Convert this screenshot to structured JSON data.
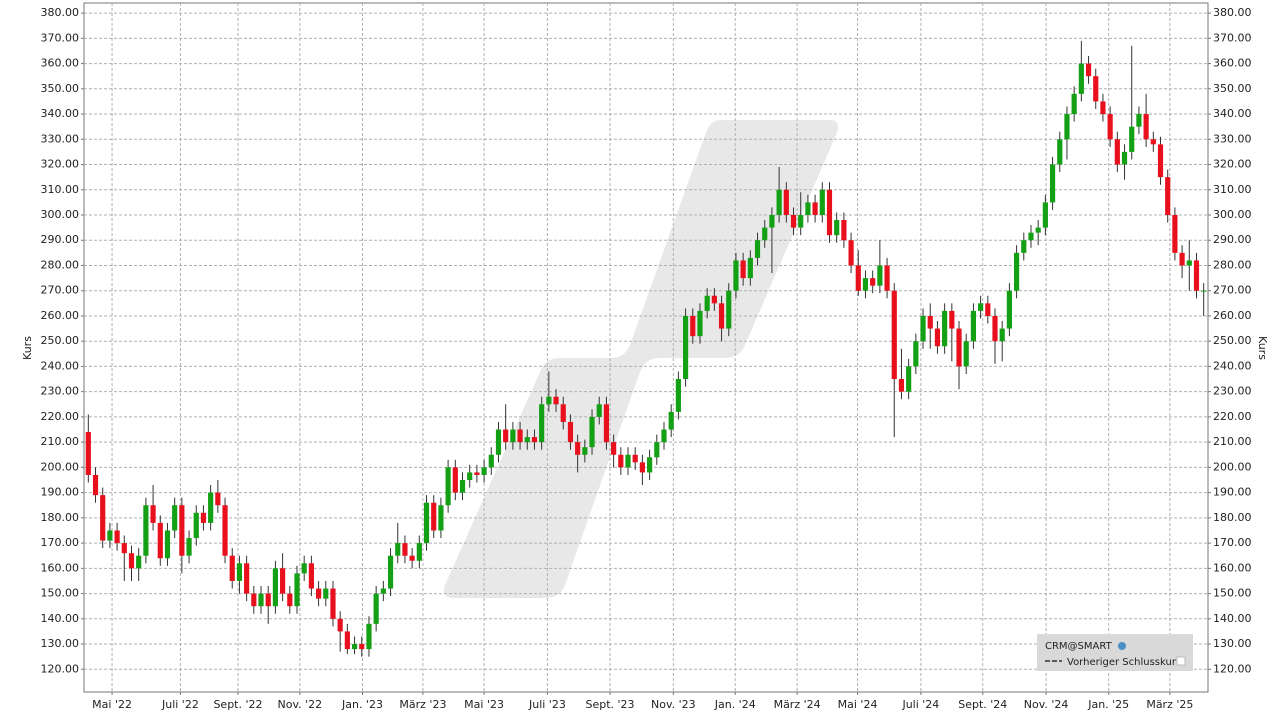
{
  "chart_data": {
    "type": "candlestick",
    "y_label": "Kurs",
    "legend": {
      "title": "CRM@SMART",
      "entry": "Vorheriger Schlusskurs"
    },
    "up_color": "#14a014",
    "down_color": "#e8101c",
    "grid": true,
    "xlim": [
      -0.6,
      155.6
    ],
    "ylim": [
      111,
      384
    ],
    "xticks": [
      {
        "value": 3.3,
        "label": "Mai '22"
      },
      {
        "value": 12.8,
        "label": "Juli '22"
      },
      {
        "value": 20.8,
        "label": "Sept. '22"
      },
      {
        "value": 29.4,
        "label": "Nov. '22"
      },
      {
        "value": 38.1,
        "label": "Jan. '23"
      },
      {
        "value": 46.5,
        "label": "März '23"
      },
      {
        "value": 55,
        "label": "Mai '23"
      },
      {
        "value": 63.8,
        "label": "Juli '23"
      },
      {
        "value": 72.5,
        "label": "Sept. '23"
      },
      {
        "value": 81.3,
        "label": "Nov. '23"
      },
      {
        "value": 89.9,
        "label": "Jan. '24"
      },
      {
        "value": 98.5,
        "label": "März '24"
      },
      {
        "value": 106.9,
        "label": "Mai '24"
      },
      {
        "value": 115.7,
        "label": "Juli '24"
      },
      {
        "value": 124.3,
        "label": "Sept. '24"
      },
      {
        "value": 133.1,
        "label": "Nov. '24"
      },
      {
        "value": 141.8,
        "label": "Jan. '25"
      },
      {
        "value": 150.3,
        "label": "März '25"
      }
    ],
    "yticks": [
      {
        "value": 120,
        "label": "120.00"
      },
      {
        "value": 130,
        "label": "130.00"
      },
      {
        "value": 140,
        "label": "140.00"
      },
      {
        "value": 150,
        "label": "150.00"
      },
      {
        "value": 160,
        "label": "160.00"
      },
      {
        "value": 170,
        "label": "170.00"
      },
      {
        "value": 180,
        "label": "180.00"
      },
      {
        "value": 190,
        "label": "190.00"
      },
      {
        "value": 200,
        "label": "200.00"
      },
      {
        "value": 210,
        "label": "210.00"
      },
      {
        "value": 220,
        "label": "220.00"
      },
      {
        "value": 230,
        "label": "230.00"
      },
      {
        "value": 240,
        "label": "240.00"
      },
      {
        "value": 250,
        "label": "250.00"
      },
      {
        "value": 260,
        "label": "260.00"
      },
      {
        "value": 270,
        "label": "270.00"
      },
      {
        "value": 280,
        "label": "280.00"
      },
      {
        "value": 290,
        "label": "290.00"
      },
      {
        "value": 300,
        "label": "300.00"
      },
      {
        "value": 310,
        "label": "310.00"
      },
      {
        "value": 320,
        "label": "320.00"
      },
      {
        "value": 330,
        "label": "330.00"
      },
      {
        "value": 340,
        "label": "340.00"
      },
      {
        "value": 350,
        "label": "350.00"
      },
      {
        "value": 360,
        "label": "360.00"
      },
      {
        "value": 370,
        "label": "370.00"
      },
      {
        "value": 380,
        "label": "380.00"
      }
    ],
    "open": [
      214,
      197,
      189,
      171,
      175,
      170,
      166,
      160,
      165,
      185,
      178,
      164,
      175,
      185,
      165,
      172,
      182,
      178,
      190,
      185,
      165,
      155,
      162,
      150,
      145,
      150,
      145,
      160,
      150,
      145,
      158,
      162,
      152,
      148,
      152,
      140,
      135,
      128,
      130,
      128,
      138,
      150,
      152,
      165,
      170,
      165,
      163,
      170,
      186,
      175,
      185,
      200,
      190,
      195,
      198,
      197,
      200,
      205,
      215,
      210,
      215,
      210,
      212,
      210,
      225,
      228,
      225,
      218,
      210,
      205,
      208,
      220,
      225,
      210,
      205,
      200,
      205,
      202,
      198,
      204,
      210,
      215,
      222,
      235,
      260,
      252,
      262,
      268,
      265,
      255,
      270,
      282,
      275,
      283,
      290,
      295,
      300,
      310,
      300,
      295,
      300,
      305,
      300,
      310,
      292,
      298,
      290,
      280,
      270,
      275,
      272,
      280,
      270,
      235,
      230,
      240,
      250,
      260,
      255,
      248,
      262,
      255,
      240,
      250,
      262,
      265,
      260,
      250,
      255,
      270,
      285,
      290,
      293,
      295,
      305,
      320,
      330,
      340,
      348,
      360,
      355,
      345,
      340,
      330,
      320,
      325,
      335,
      340,
      330,
      328,
      315,
      300,
      285,
      280,
      282,
      270
    ],
    "high": [
      221,
      200,
      192,
      178,
      178,
      173,
      169,
      168,
      188,
      193,
      181,
      178,
      188,
      188,
      175,
      185,
      185,
      193,
      195,
      188,
      168,
      165,
      165,
      153,
      153,
      153,
      163,
      166,
      153,
      161,
      165,
      165,
      155,
      155,
      155,
      143,
      138,
      133,
      133,
      141,
      153,
      155,
      168,
      178,
      173,
      168,
      173,
      189,
      189,
      188,
      203,
      203,
      198,
      201,
      201,
      203,
      208,
      218,
      225,
      218,
      218,
      215,
      215,
      228,
      238,
      231,
      228,
      221,
      213,
      211,
      223,
      228,
      228,
      213,
      208,
      208,
      208,
      205,
      207,
      213,
      218,
      225,
      238,
      263,
      263,
      265,
      271,
      271,
      268,
      273,
      285,
      285,
      286,
      293,
      298,
      303,
      319,
      313,
      303,
      309,
      308,
      308,
      313,
      313,
      301,
      301,
      293,
      286,
      278,
      278,
      290,
      283,
      273,
      247,
      243,
      253,
      263,
      265,
      258,
      265,
      265,
      258,
      253,
      265,
      268,
      268,
      263,
      258,
      273,
      288,
      293,
      296,
      298,
      308,
      323,
      333,
      343,
      351,
      369,
      363,
      358,
      348,
      343,
      333,
      328,
      367,
      343,
      348,
      333,
      331,
      318,
      303,
      288,
      290,
      285,
      273
    ],
    "low": [
      194,
      186,
      168,
      168,
      167,
      155,
      155,
      155,
      162,
      175,
      161,
      161,
      172,
      158,
      162,
      169,
      175,
      175,
      182,
      162,
      152,
      150,
      147,
      142,
      142,
      138,
      142,
      147,
      142,
      142,
      155,
      149,
      145,
      145,
      137,
      127,
      126,
      126,
      125,
      125,
      135,
      147,
      149,
      162,
      162,
      160,
      160,
      167,
      172,
      172,
      182,
      187,
      187,
      192,
      194,
      194,
      197,
      202,
      207,
      207,
      207,
      207,
      207,
      207,
      222,
      222,
      215,
      207,
      198,
      202,
      205,
      217,
      207,
      200,
      197,
      197,
      199,
      193,
      195,
      201,
      207,
      212,
      219,
      232,
      249,
      249,
      259,
      262,
      250,
      252,
      267,
      272,
      272,
      280,
      287,
      277,
      297,
      297,
      292,
      292,
      297,
      297,
      297,
      289,
      289,
      287,
      277,
      268,
      267,
      269,
      269,
      267,
      212,
      227,
      227,
      237,
      247,
      247,
      245,
      245,
      242,
      231,
      237,
      247,
      259,
      257,
      241,
      242,
      252,
      267,
      282,
      287,
      288,
      292,
      302,
      317,
      322,
      337,
      345,
      352,
      342,
      337,
      327,
      317,
      314,
      322,
      332,
      327,
      325,
      312,
      297,
      282,
      275,
      270,
      267,
      260
    ],
    "close": [
      197,
      189,
      171,
      175,
      170,
      166,
      160,
      165,
      185,
      178,
      164,
      175,
      185,
      165,
      172,
      182,
      178,
      190,
      185,
      165,
      155,
      162,
      150,
      145,
      150,
      145,
      160,
      150,
      145,
      158,
      162,
      152,
      148,
      152,
      140,
      135,
      128,
      130,
      128,
      138,
      150,
      152,
      165,
      170,
      165,
      163,
      170,
      186,
      175,
      185,
      200,
      190,
      195,
      198,
      197,
      200,
      205,
      215,
      210,
      215,
      210,
      212,
      210,
      225,
      228,
      225,
      218,
      210,
      205,
      208,
      220,
      225,
      210,
      205,
      200,
      205,
      202,
      198,
      204,
      210,
      215,
      222,
      235,
      260,
      252,
      262,
      268,
      265,
      255,
      270,
      282,
      275,
      283,
      290,
      295,
      300,
      310,
      300,
      295,
      300,
      305,
      300,
      310,
      292,
      298,
      290,
      280,
      270,
      275,
      272,
      280,
      270,
      235,
      230,
      240,
      250,
      260,
      255,
      248,
      262,
      255,
      240,
      250,
      262,
      265,
      260,
      250,
      255,
      270,
      285,
      290,
      293,
      295,
      305,
      320,
      330,
      340,
      348,
      360,
      355,
      345,
      340,
      330,
      320,
      325,
      335,
      340,
      330,
      328,
      315,
      300,
      285,
      280,
      282,
      270,
      270
    ]
  }
}
